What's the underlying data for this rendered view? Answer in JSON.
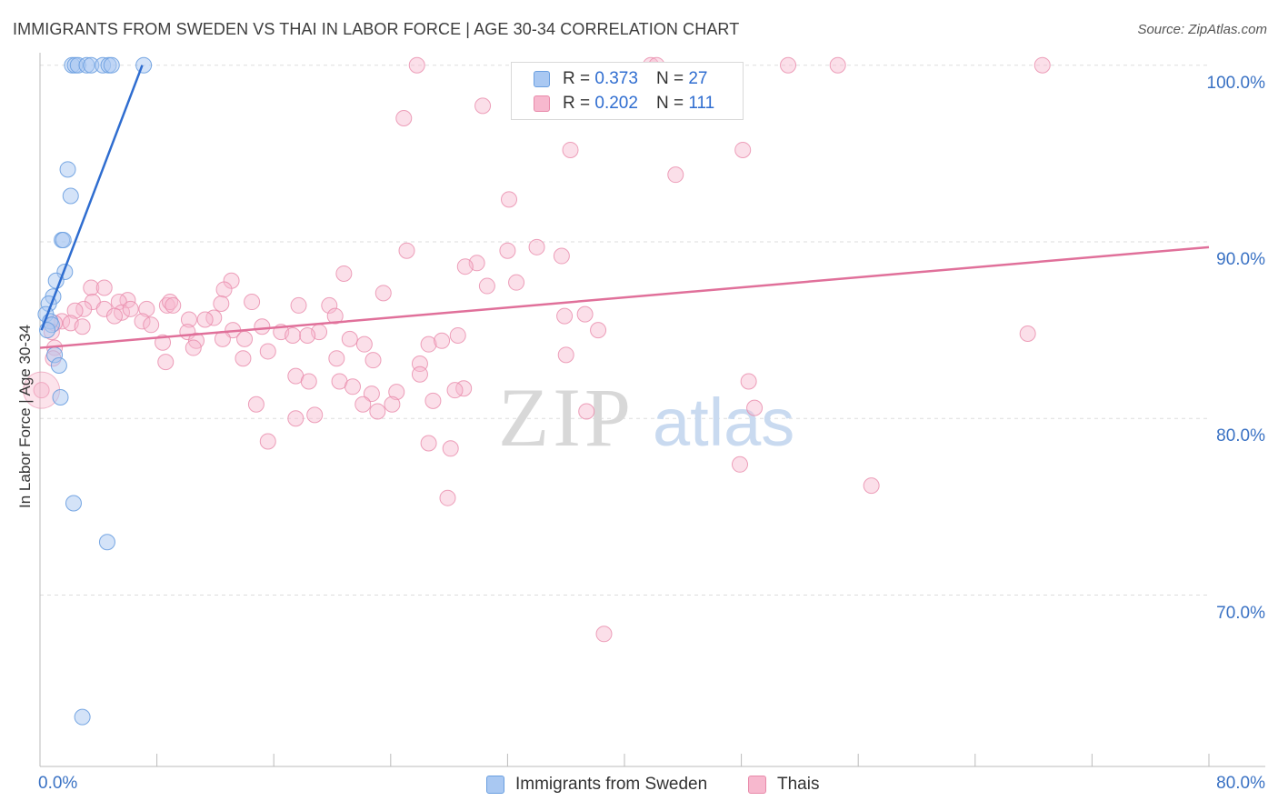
{
  "header": {
    "title": "IMMIGRANTS FROM SWEDEN VS THAI IN LABOR FORCE | AGE 30-34 CORRELATION CHART",
    "source": "Source: ZipAtlas.com"
  },
  "watermark": {
    "zip": "ZIP",
    "atlas": "atlas"
  },
  "legend": {
    "sweden": {
      "r_label": "R =",
      "r_value": "0.373",
      "n_label": "N =",
      "n_value": "27"
    },
    "thai": {
      "r_label": "R =",
      "r_value": "0.202",
      "n_label": "N =",
      "n_value": "111"
    }
  },
  "colors": {
    "sweden_fill": "#a9c8f2",
    "sweden_stroke": "#6a9fe0",
    "sweden_line": "#2f6dd0",
    "thai_fill": "#f7b8ce",
    "thai_stroke": "#e88aaa",
    "thai_line": "#e0709a",
    "grid": "#dddddd",
    "tick_text": "#3a72c4"
  },
  "chart_data": {
    "type": "scatter",
    "title": "IMMIGRANTS FROM SWEDEN VS THAI IN LABOR FORCE | AGE 30-34 CORRELATION CHART",
    "xlabel": "",
    "ylabel": "In Labor Force | Age 30-34",
    "xlim": [
      0,
      80
    ],
    "ylim": [
      60.3,
      100.5
    ],
    "x_tick_labels": [
      {
        "value": 0,
        "label": "0.0%"
      },
      {
        "value": 80,
        "label": "80.0%"
      }
    ],
    "x_minor_ticks": [
      8,
      16,
      24,
      32,
      40,
      48,
      56,
      64,
      72,
      80
    ],
    "y_ticks": [
      {
        "value": 100,
        "label": "100.0%"
      },
      {
        "value": 90,
        "label": "90.0%"
      },
      {
        "value": 80,
        "label": "80.0%"
      },
      {
        "value": 70,
        "label": "70.0%"
      }
    ],
    "grid": true,
    "series": [
      {
        "name": "Immigrants from Sweden",
        "r": 0.373,
        "n": 27,
        "trend": {
          "x": [
            0.1,
            7.0
          ],
          "y": [
            85.0,
            100.0
          ]
        },
        "points": [
          [
            2.2,
            100
          ],
          [
            2.4,
            100
          ],
          [
            2.6,
            100
          ],
          [
            3.2,
            100
          ],
          [
            3.5,
            100
          ],
          [
            4.3,
            100
          ],
          [
            4.7,
            100
          ],
          [
            4.9,
            100
          ],
          [
            7.1,
            100
          ],
          [
            1.9,
            94.1
          ],
          [
            2.1,
            92.6
          ],
          [
            1.5,
            90.1
          ],
          [
            1.6,
            90.1
          ],
          [
            1.7,
            88.3
          ],
          [
            1.1,
            87.8
          ],
          [
            0.9,
            86.9
          ],
          [
            0.6,
            86.5
          ],
          [
            0.4,
            85.9
          ],
          [
            0.7,
            85.5
          ],
          [
            0.8,
            85.3
          ],
          [
            0.5,
            85.0
          ],
          [
            1.0,
            83.6
          ],
          [
            1.3,
            83.0
          ],
          [
            1.4,
            81.2
          ],
          [
            2.3,
            75.2
          ],
          [
            4.6,
            73.0
          ],
          [
            2.9,
            63.1
          ]
        ]
      },
      {
        "name": "Thais",
        "r": 0.202,
        "n": 111,
        "trend": {
          "x": [
            0,
            80
          ],
          "y": [
            84.0,
            89.7
          ]
        },
        "points": [
          [
            25.8,
            100
          ],
          [
            41.8,
            100
          ],
          [
            51.2,
            100
          ],
          [
            54.6,
            100
          ],
          [
            68.6,
            100
          ],
          [
            24.9,
            97.0
          ],
          [
            30.3,
            97.7
          ],
          [
            36.3,
            95.2
          ],
          [
            48.1,
            95.2
          ],
          [
            43.5,
            93.8
          ],
          [
            32.1,
            92.4
          ],
          [
            25.1,
            89.5
          ],
          [
            32.0,
            89.5
          ],
          [
            34.0,
            89.7
          ],
          [
            35.7,
            89.2
          ],
          [
            29.9,
            88.8
          ],
          [
            29.1,
            88.6
          ],
          [
            20.8,
            88.2
          ],
          [
            13.1,
            87.8
          ],
          [
            30.6,
            87.5
          ],
          [
            32.6,
            87.7
          ],
          [
            12.6,
            87.3
          ],
          [
            23.5,
            87.1
          ],
          [
            3.5,
            87.4
          ],
          [
            4.4,
            87.4
          ],
          [
            6.0,
            86.7
          ],
          [
            3.6,
            86.6
          ],
          [
            5.4,
            86.6
          ],
          [
            8.7,
            86.4
          ],
          [
            8.9,
            86.6
          ],
          [
            9.1,
            86.4
          ],
          [
            12.4,
            86.5
          ],
          [
            14.5,
            86.6
          ],
          [
            17.7,
            86.4
          ],
          [
            19.8,
            86.4
          ],
          [
            3.0,
            86.2
          ],
          [
            2.4,
            86.1
          ],
          [
            4.4,
            86.2
          ],
          [
            5.6,
            86.0
          ],
          [
            6.2,
            86.2
          ],
          [
            7.3,
            86.2
          ],
          [
            5.1,
            85.8
          ],
          [
            10.2,
            85.6
          ],
          [
            7.0,
            85.5
          ],
          [
            11.9,
            85.7
          ],
          [
            20.2,
            85.8
          ],
          [
            11.3,
            85.6
          ],
          [
            35.9,
            85.8
          ],
          [
            37.3,
            85.9
          ],
          [
            1.5,
            85.5
          ],
          [
            2.1,
            85.4
          ],
          [
            1.0,
            85.4
          ],
          [
            2.9,
            85.2
          ],
          [
            7.6,
            85.3
          ],
          [
            15.2,
            85.2
          ],
          [
            0.8,
            84.9
          ],
          [
            10.1,
            84.9
          ],
          [
            13.2,
            85.0
          ],
          [
            16.5,
            84.9
          ],
          [
            19.1,
            84.9
          ],
          [
            17.3,
            84.7
          ],
          [
            18.3,
            84.7
          ],
          [
            28.6,
            84.7
          ],
          [
            38.2,
            85.0
          ],
          [
            67.6,
            84.8
          ],
          [
            8.4,
            84.3
          ],
          [
            10.7,
            84.4
          ],
          [
            12.5,
            84.5
          ],
          [
            14.0,
            84.5
          ],
          [
            21.2,
            84.5
          ],
          [
            22.2,
            84.2
          ],
          [
            26.6,
            84.2
          ],
          [
            27.5,
            84.4
          ],
          [
            1.0,
            84.0
          ],
          [
            10.5,
            84.0
          ],
          [
            15.6,
            83.8
          ],
          [
            0.9,
            83.4
          ],
          [
            8.6,
            83.2
          ],
          [
            13.9,
            83.4
          ],
          [
            20.3,
            83.4
          ],
          [
            22.8,
            83.3
          ],
          [
            26.0,
            83.1
          ],
          [
            36.0,
            83.6
          ],
          [
            26.0,
            82.5
          ],
          [
            17.5,
            82.4
          ],
          [
            18.4,
            82.1
          ],
          [
            20.5,
            82.1
          ],
          [
            21.4,
            81.8
          ],
          [
            48.5,
            82.1
          ],
          [
            29.0,
            81.7
          ],
          [
            22.7,
            81.4
          ],
          [
            24.4,
            81.5
          ],
          [
            28.4,
            81.6
          ],
          [
            26.9,
            81.0
          ],
          [
            0.1,
            81.6
          ],
          [
            24.1,
            80.8
          ],
          [
            14.8,
            80.8
          ],
          [
            22.1,
            80.8
          ],
          [
            23.1,
            80.4
          ],
          [
            18.8,
            80.2
          ],
          [
            17.5,
            80.0
          ],
          [
            37.4,
            80.4
          ],
          [
            48.9,
            80.6
          ],
          [
            15.6,
            78.7
          ],
          [
            26.6,
            78.6
          ],
          [
            28.1,
            78.3
          ],
          [
            47.9,
            77.4
          ],
          [
            56.9,
            76.2
          ],
          [
            27.9,
            75.5
          ],
          [
            38.6,
            67.8
          ],
          [
            42.2,
            100
          ]
        ]
      }
    ]
  },
  "legend_bottom": {
    "sweden_label": "Immigrants from Sweden",
    "thai_label": "Thais"
  }
}
